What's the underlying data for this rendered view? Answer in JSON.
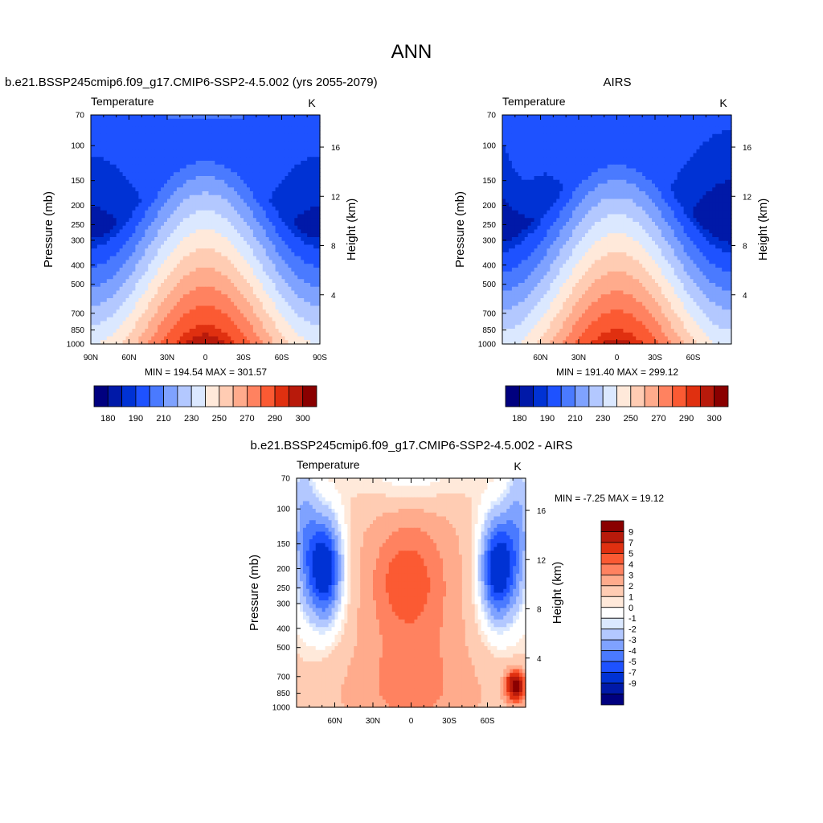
{
  "page_title": "ANN",
  "colors": {
    "temp_scale": [
      "#00007f",
      "#0019a8",
      "#0032d4",
      "#1e52ff",
      "#4a7aff",
      "#7fa2ff",
      "#b3c8ff",
      "#dbe8ff",
      "#ffe9da",
      "#ffccb3",
      "#ffab8c",
      "#ff8260",
      "#fb5a33",
      "#e03010",
      "#b81a0b",
      "#8a0000"
    ],
    "diff_scale": [
      "#00007f",
      "#0019a8",
      "#0032d4",
      "#1e52ff",
      "#4a7aff",
      "#7fa2ff",
      "#b3c8ff",
      "#dbe8ff",
      "#ffffff",
      "#ffe9da",
      "#ffccb3",
      "#ffab8c",
      "#ff8260",
      "#fb5a33",
      "#e03010",
      "#b81a0b",
      "#8a0000"
    ]
  },
  "chart_data": [
    {
      "type": "heatmap",
      "id": "model",
      "title": "b.e21.BSSP245cmip6.f09_g17.CMIP6-SSP2-4.5.002 (yrs 2055-2079)",
      "left_label": "Temperature",
      "right_label": "K",
      "ylabel": "Pressure (mb)",
      "y2label": "Height (km)",
      "x_range": [
        90,
        -90
      ],
      "y_range": [
        1000,
        70
      ],
      "x_ticks": [
        "90N",
        "60N",
        "30N",
        "0",
        "30S",
        "60S",
        "90S"
      ],
      "y_ticks": [
        "70",
        "100",
        "150",
        "200",
        "250",
        "300",
        "400",
        "500",
        "700",
        "850",
        "1000"
      ],
      "y2_ticks": [
        "16",
        "12",
        "8",
        "4"
      ],
      "stats": "MIN = 194.54  MAX = 301.57",
      "colorbar_labels": [
        "180",
        "190",
        "210",
        "230",
        "250",
        "270",
        "290",
        "300"
      ],
      "min": 194.54,
      "max": 301.57
    },
    {
      "type": "heatmap",
      "id": "obs",
      "title": "AIRS",
      "left_label": "Temperature",
      "right_label": "K",
      "ylabel": "Pressure (mb)",
      "y2label": "Height (km)",
      "x_range": [
        90,
        -90
      ],
      "y_range": [
        1000,
        70
      ],
      "x_ticks": [
        "60N",
        "30N",
        "0",
        "30S",
        "60S"
      ],
      "y_ticks": [
        "70",
        "100",
        "150",
        "200",
        "250",
        "300",
        "400",
        "500",
        "700",
        "850",
        "1000"
      ],
      "y2_ticks": [
        "16",
        "12",
        "8",
        "4"
      ],
      "stats": "MIN = 191.40  MAX = 299.12",
      "colorbar_labels": [
        "180",
        "190",
        "210",
        "230",
        "250",
        "270",
        "290",
        "300"
      ],
      "min": 191.4,
      "max": 299.12
    },
    {
      "type": "heatmap",
      "id": "diff",
      "title": "b.e21.BSSP245cmip6.f09_g17.CMIP6-SSP2-4.5.002 - AIRS",
      "left_label": "Temperature",
      "right_label": "K",
      "ylabel": "Pressure (mb)",
      "y2label": "Height (km)",
      "x_range": [
        90,
        -90
      ],
      "y_range": [
        1000,
        70
      ],
      "x_ticks": [
        "60N",
        "30N",
        "0",
        "30S",
        "60S"
      ],
      "y_ticks": [
        "70",
        "100",
        "150",
        "200",
        "250",
        "300",
        "400",
        "500",
        "700",
        "850",
        "1000"
      ],
      "y2_ticks": [
        "16",
        "12",
        "8",
        "4"
      ],
      "stats": "MIN =  -7.25  MAX =  19.12",
      "colorbar_labels": [
        "9",
        "7",
        "5",
        "4",
        "3",
        "2",
        "1",
        "0",
        "-1",
        "-2",
        "-3",
        "-4",
        "-5",
        "-7",
        "-9"
      ],
      "min": -7.25,
      "max": 19.12
    }
  ]
}
